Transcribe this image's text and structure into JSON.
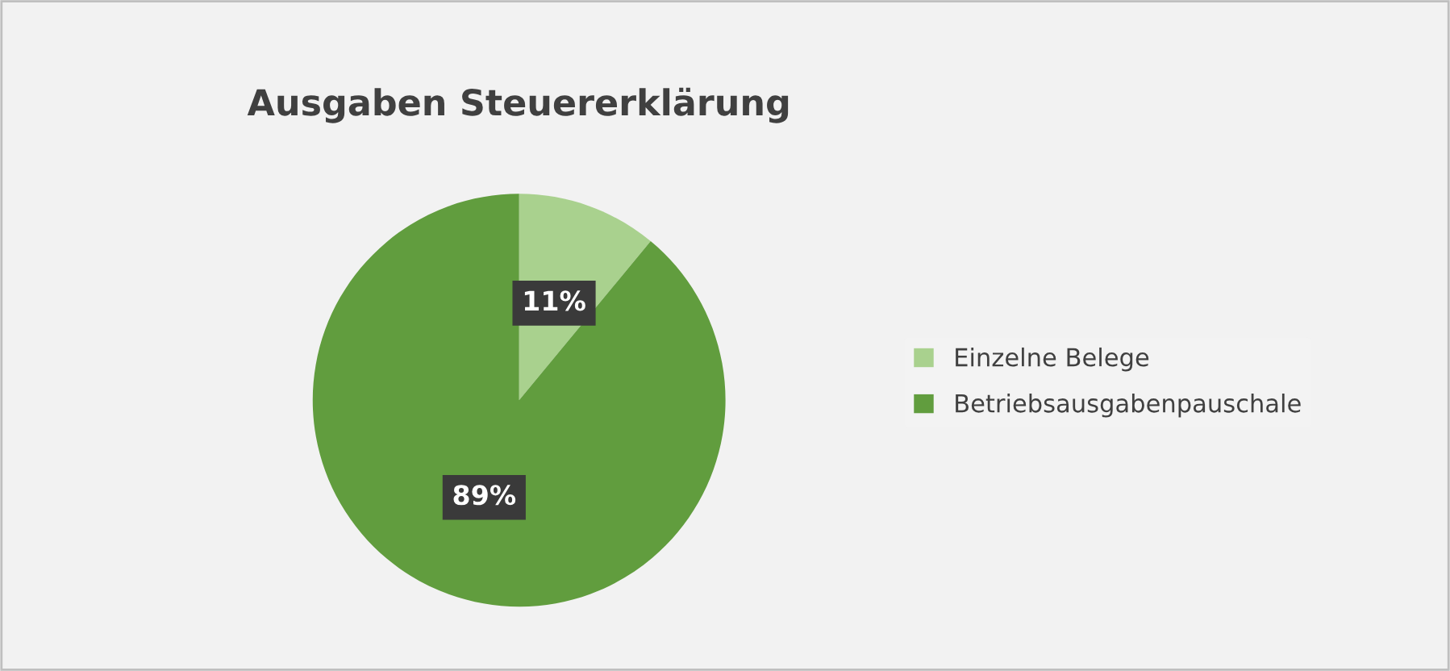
{
  "chart_data": {
    "type": "pie",
    "title": "Ausgaben Steuererklärung",
    "categories": [
      "Einzelne Belege",
      "Betriebsausgabenpauschale"
    ],
    "values": [
      11,
      89
    ],
    "colors": [
      "#a9d18e",
      "#619d3e"
    ],
    "value_labels": [
      "11%",
      "89%"
    ],
    "legend": "right"
  }
}
